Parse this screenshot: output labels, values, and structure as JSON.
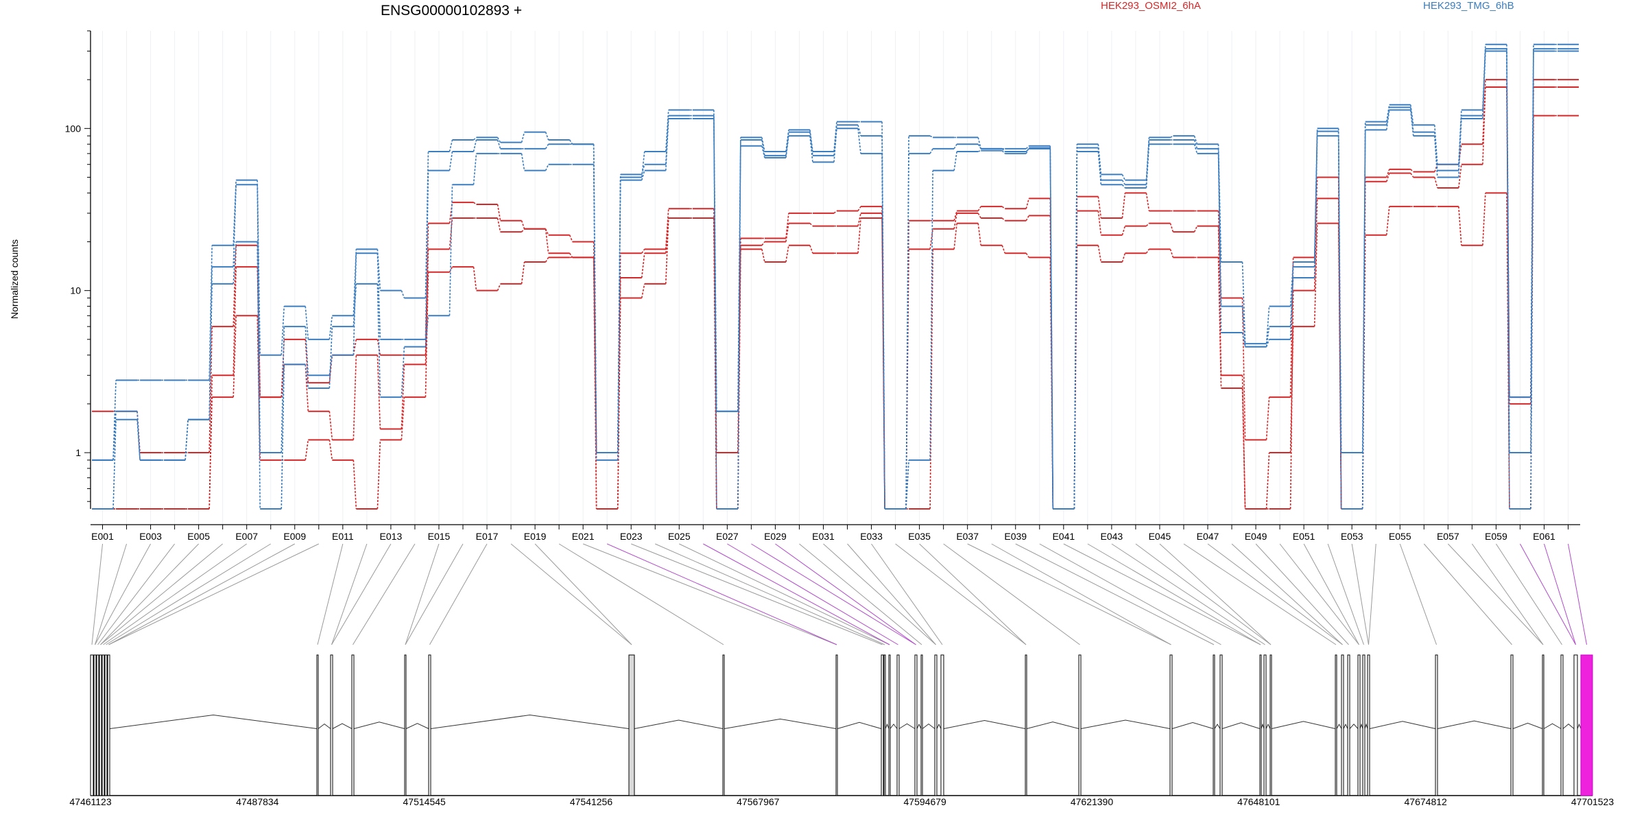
{
  "chart_data": {
    "type": "line",
    "title": "ENSG00000102893 +",
    "ylabel": "Normalized counts",
    "yscale": "log",
    "ylim": [
      0.45,
      400
    ],
    "yticks": [
      {
        "value": 1,
        "label": "1"
      },
      {
        "value": 10,
        "label": "10"
      },
      {
        "value": 100,
        "label": "100"
      }
    ],
    "legend": [
      {
        "label": "HEK293_OSMI2_6hA",
        "color": "#d62728"
      },
      {
        "label": "HEK293_TMG_6hB",
        "color": "#3a7dc0"
      }
    ],
    "categories": [
      "E001",
      "E002",
      "E003",
      "E004",
      "E005",
      "E006",
      "E007",
      "E008",
      "E009",
      "E010",
      "E011",
      "E012",
      "E013",
      "E014",
      "E015",
      "E016",
      "E017",
      "E018",
      "E019",
      "E020",
      "E021",
      "E022",
      "E023",
      "E024",
      "E025",
      "E026",
      "E027",
      "E028",
      "E029",
      "E030",
      "E031",
      "E032",
      "E033",
      "E034",
      "E035",
      "E036",
      "E037",
      "E038",
      "E039",
      "E040",
      "E041",
      "E042",
      "E043",
      "E044",
      "E045",
      "E046",
      "E047",
      "E048",
      "E049",
      "E050",
      "E051",
      "E052",
      "E053",
      "E054",
      "E055",
      "E056",
      "E057",
      "E058",
      "E059",
      "E060",
      "E061",
      "E062"
    ],
    "category_labels": [
      "E001",
      "E003",
      "E005",
      "E007",
      "E009",
      "E011",
      "E013",
      "E015",
      "E017",
      "E019",
      "E021",
      "E023",
      "E025",
      "E027",
      "E029",
      "E031",
      "E033",
      "E035",
      "E037",
      "E039",
      "E041",
      "E043",
      "E045",
      "E047",
      "E049",
      "E051",
      "E053",
      "E055",
      "E057",
      "E059",
      "E061"
    ],
    "series": [
      {
        "group": 0,
        "values": [
          1.8,
          1.8,
          1,
          1,
          1,
          6,
          19,
          2.2,
          5,
          2.7,
          4,
          5,
          4,
          4,
          26,
          35,
          34,
          27,
          24,
          22,
          20,
          1,
          17,
          18,
          32,
          32,
          1,
          21,
          21,
          30,
          30,
          31,
          33,
          0.45,
          27,
          27,
          31,
          33,
          32,
          37,
          0.45,
          38,
          28,
          40,
          31,
          31,
          31,
          9,
          1.2,
          2.2,
          16,
          50,
          0.45,
          50,
          56,
          54,
          60,
          80,
          200,
          2.2,
          200,
          200
        ]
      },
      {
        "group": 0,
        "values": [
          0.45,
          0.45,
          0.45,
          0.45,
          0.45,
          3,
          14,
          2.2,
          3.5,
          1.8,
          1.2,
          4,
          1.4,
          3.5,
          18,
          28,
          28,
          23,
          24,
          17,
          16,
          0.45,
          12,
          17,
          28,
          28,
          0.45,
          19,
          20,
          26,
          25,
          25,
          30,
          0.45,
          18,
          24,
          30,
          28,
          27,
          29,
          0.45,
          31,
          22,
          25,
          26,
          23,
          25,
          3,
          0.45,
          0.45,
          10,
          37,
          0.45,
          47,
          53,
          50,
          43,
          60,
          180,
          2,
          180,
          180
        ]
      },
      {
        "group": 0,
        "values": [
          0.45,
          0.45,
          0.45,
          0.45,
          0.45,
          2.2,
          7,
          0.9,
          0.9,
          1.2,
          0.9,
          0.45,
          1.2,
          2.2,
          13,
          14,
          10,
          11,
          15,
          16,
          16,
          0.45,
          9,
          11,
          28,
          28,
          0.45,
          18,
          15,
          19,
          17,
          17,
          28,
          0.45,
          0.45,
          18,
          26,
          19,
          17,
          16,
          0.45,
          19,
          15,
          17,
          18,
          16,
          16,
          2.5,
          0.45,
          1,
          6,
          26,
          0.45,
          22,
          33,
          33,
          33,
          19,
          40,
          0.45,
          120,
          120
        ]
      },
      {
        "group": 1,
        "values": [
          0.9,
          2.8,
          2.8,
          2.8,
          2.8,
          19,
          48,
          4,
          8,
          5,
          7,
          18,
          10,
          9,
          72,
          85,
          88,
          82,
          95,
          85,
          80,
          1,
          50,
          72,
          130,
          130,
          0.45,
          88,
          72,
          98,
          72,
          110,
          110,
          0.45,
          90,
          88,
          88,
          75,
          75,
          78,
          0.45,
          80,
          52,
          48,
          88,
          90,
          80,
          15,
          4.7,
          8,
          15,
          100,
          0.45,
          110,
          140,
          105,
          60,
          130,
          330,
          2.2,
          330,
          330
        ]
      },
      {
        "group": 1,
        "values": [
          0.9,
          1.8,
          0.9,
          0.9,
          1.6,
          14,
          45,
          1,
          6,
          3,
          4,
          17,
          5,
          5,
          55,
          72,
          85,
          75,
          75,
          80,
          80,
          1,
          52,
          60,
          120,
          120,
          1.8,
          85,
          68,
          95,
          68,
          105,
          90,
          0.45,
          70,
          75,
          80,
          75,
          72,
          75,
          0.45,
          76,
          48,
          45,
          85,
          85,
          75,
          8,
          4.5,
          6,
          12,
          96,
          0.45,
          105,
          135,
          95,
          55,
          120,
          310,
          1,
          310,
          310
        ]
      },
      {
        "group": 1,
        "values": [
          0.45,
          1.6,
          0.9,
          0.9,
          1.6,
          11,
          20,
          0.45,
          3.5,
          2.5,
          6,
          11,
          2.2,
          4.5,
          7,
          45,
          70,
          70,
          55,
          60,
          60,
          0.9,
          48,
          55,
          115,
          115,
          1.8,
          78,
          66,
          90,
          62,
          100,
          70,
          0.45,
          0.9,
          55,
          72,
          73,
          70,
          76,
          0.45,
          72,
          45,
          43,
          80,
          80,
          70,
          5.5,
          4.5,
          5,
          14,
          90,
          1,
          98,
          130,
          90,
          50,
          115,
          300,
          0.45,
          300,
          300
        ]
      }
    ]
  },
  "genome_track": {
    "coordinates": [
      "47461123",
      "47487834",
      "47514545",
      "47541256",
      "47567967",
      "47594679",
      "47621390",
      "47648101",
      "47674812",
      "47701523"
    ]
  }
}
